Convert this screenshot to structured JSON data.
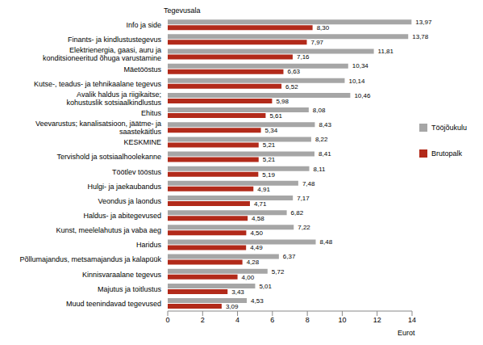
{
  "chart_data": {
    "type": "bar",
    "orientation": "horizontal",
    "y_label": "Tegevusala",
    "x_label": "Eurot",
    "categories": [
      "Info ja side",
      "Finants- ja kindlustustegevus",
      "Elektrienergia, gaasi, auru ja konditsioneeritud õhuga varustamine",
      "Mäetööstus",
      "Kutse-, teadus- ja tehnikaalane tegevus",
      "Avalik haldus ja riigikaitse; kohustuslik sotsiaalkindlustus",
      "Ehitus",
      "Veevarustus; kanalisatsioon, jäätme- ja saastekäitlus",
      "KESKMINE",
      "Tervishold ja sotsiaalhoolekanne",
      "Töötlev tööstus",
      "Hulgi- ja jaekaubandus",
      "Veondus ja laondus",
      "Haldus- ja abitegevused",
      "Kunst, meelelahutus ja vaba aeg",
      "Haridus",
      "Põllumajandus, metsamajandus ja kalapüük",
      "Kinnisvaraalane tegevus",
      "Majutus ja toitlustus",
      "Muud teenindavad tegevused"
    ],
    "series": [
      {
        "name": "Tööjõukulu",
        "color": "#a6a6a6",
        "values": [
          13.97,
          13.78,
          11.81,
          10.34,
          10.14,
          10.46,
          8.08,
          8.43,
          8.22,
          8.41,
          8.11,
          7.48,
          7.17,
          6.82,
          7.22,
          8.48,
          6.37,
          5.72,
          5.01,
          4.53
        ],
        "value_labels": [
          "13,97",
          "13,78",
          "11,81",
          "10,34",
          "10,14",
          "10,46",
          "8,08",
          "8,43",
          "8,22",
          "8,41",
          "8,11",
          "7,48",
          "7,17",
          "6,82",
          "7,22",
          "8,48",
          "6,37",
          "5,72",
          "5,01",
          "4,53"
        ]
      },
      {
        "name": "Brutopalk",
        "color": "#b22a1a",
        "values": [
          8.3,
          7.97,
          7.16,
          6.63,
          6.52,
          5.98,
          5.61,
          5.34,
          5.21,
          5.21,
          5.19,
          4.91,
          4.71,
          4.58,
          4.5,
          4.49,
          4.28,
          4.0,
          3.43,
          3.09
        ],
        "value_labels": [
          "8,30",
          "7,97",
          "7,16",
          "6,63",
          "6,52",
          "5,98",
          "5,61",
          "5,34",
          "5,21",
          "5,21",
          "5,19",
          "4,91",
          "4,71",
          "4,58",
          "4,50",
          "4,49",
          "4,28",
          "4,00",
          "3,43",
          "3,09"
        ]
      }
    ],
    "xlim": [
      0,
      14
    ],
    "xticks": [
      0,
      2,
      4,
      6,
      8,
      10,
      12,
      14
    ],
    "grid": false,
    "legend": "right",
    "data_labels": true
  }
}
